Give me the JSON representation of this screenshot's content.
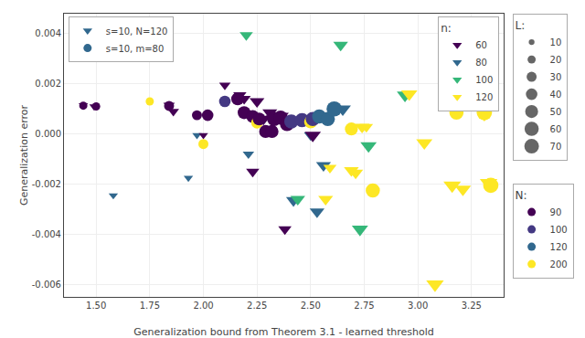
{
  "chart_data": {
    "type": "scatter",
    "xlabel": "Generalization bound from Theorem 3.1 - learned threshold",
    "ylabel": "Generalization error",
    "xlim": [
      1.35,
      3.4
    ],
    "ylim": [
      -0.0065,
      0.0048
    ],
    "xticks": [
      {
        "value": 1.5,
        "label": "1.50"
      },
      1.75,
      {
        "value": 2.0,
        "label": "2.00"
      },
      2.25,
      {
        "value": 2.5,
        "label": "2.50"
      },
      2.75,
      {
        "value": 3.0,
        "label": "3.00"
      },
      3.25
    ],
    "yticks": [
      -0.006,
      -0.004,
      -0.002,
      {
        "value": 0,
        "label": "0.000"
      },
      0.002,
      0.004
    ],
    "grid": true,
    "series": [
      {
        "name": "s=10, N=120",
        "marker": "triangle-down",
        "color": "#31688e",
        "x": [
          1.44,
          1.49,
          1.58,
          1.84,
          1.86,
          1.93,
          1.97,
          2.0,
          2.1,
          2.17,
          2.19,
          2.2,
          2.21,
          2.23,
          2.25,
          2.28,
          2.31,
          2.33,
          2.36,
          2.38,
          2.42,
          2.44,
          2.5,
          2.51,
          2.53,
          2.56,
          2.57,
          2.59,
          2.64,
          2.65,
          2.69,
          2.71,
          2.73,
          2.74,
          2.76,
          2.77,
          2.94,
          2.96,
          3.03,
          3.08,
          3.16,
          3.21,
          3.31,
          3.33
        ],
        "y": [
          0.00115,
          0.0011,
          -0.00245,
          0.00115,
          0.0009,
          -0.00175,
          -5e-05,
          -5e-05,
          0.00195,
          0.00155,
          0.0014,
          0.00395,
          -0.0008,
          -0.0015,
          0.0013,
          0.0006,
          0.00085,
          0.0006,
          0.0007,
          -0.0038,
          -0.00265,
          -0.0026,
          -5e-05,
          -5e-05,
          -0.0031,
          -0.00125,
          -0.0026,
          -0.00135,
          0.00355,
          0.001,
          -0.00145,
          -0.00155,
          -0.0038,
          0.00028,
          0.00028,
          -0.00047,
          0.00155,
          0.0016,
          -0.00035,
          -0.006,
          -0.00205,
          -0.0022,
          0.0008,
          -0.00195
        ],
        "groups": [
          60,
          60,
          80,
          60,
          60,
          80,
          80,
          60,
          60,
          60,
          60,
          100,
          80,
          60,
          60,
          60,
          60,
          60,
          60,
          60,
          80,
          100,
          80,
          60,
          80,
          80,
          120,
          120,
          100,
          80,
          120,
          120,
          100,
          120,
          120,
          100,
          100,
          120,
          120,
          120,
          120,
          120,
          120,
          120
        ],
        "L": [
          20,
          20,
          20,
          30,
          30,
          20,
          20,
          20,
          30,
          40,
          40,
          40,
          30,
          40,
          50,
          50,
          50,
          60,
          60,
          40,
          50,
          50,
          40,
          60,
          50,
          50,
          50,
          40,
          50,
          60,
          50,
          50,
          60,
          50,
          40,
          60,
          60,
          60,
          60,
          70,
          70,
          60,
          70,
          70
        ],
        "group_legend": {
          "title": "n:",
          "items": [
            {
              "name": "60",
              "color": "#440154"
            },
            {
              "name": "80",
              "color": "#31688e"
            },
            {
              "name": "100",
              "color": "#35b779"
            },
            {
              "name": "120",
              "color": "#fde725"
            }
          ]
        }
      },
      {
        "name": "s=10, m=80",
        "marker": "circle",
        "color": "#31688e",
        "x": [
          1.44,
          1.5,
          1.75,
          1.84,
          1.97,
          2.0,
          2.02,
          2.1,
          2.16,
          2.19,
          2.23,
          2.25,
          2.26,
          2.29,
          2.32,
          2.33,
          2.36,
          2.39,
          2.41,
          2.46,
          2.5,
          2.51,
          2.54,
          2.58,
          2.61,
          2.69,
          2.79,
          3.18,
          3.31,
          3.34
        ],
        "y": [
          0.00113,
          0.0011,
          0.0013,
          0.00112,
          0.00075,
          -0.0004,
          0.00075,
          0.0013,
          0.0014,
          0.00085,
          0.0007,
          0.00045,
          0.0006,
          0.0001,
          0.0001,
          0.0006,
          0.00065,
          0.0004,
          0.0005,
          0.00055,
          0.00048,
          0.0006,
          0.0007,
          0.0006,
          0.001,
          0.0002,
          -0.00225,
          0.00085,
          0.00085,
          -0.00205
        ],
        "groups": [
          90,
          90,
          200,
          90,
          90,
          200,
          90,
          100,
          90,
          90,
          90,
          200,
          90,
          90,
          90,
          90,
          90,
          90,
          100,
          100,
          200,
          100,
          120,
          120,
          120,
          200,
          200,
          200,
          200,
          200
        ],
        "L": [
          20,
          20,
          20,
          30,
          30,
          30,
          40,
          40,
          50,
          50,
          50,
          40,
          50,
          50,
          50,
          60,
          60,
          60,
          60,
          60,
          50,
          60,
          60,
          60,
          70,
          50,
          60,
          60,
          70,
          70
        ],
        "group_legend": {
          "title": "N:",
          "items": [
            {
              "name": "90",
              "color": "#440154"
            },
            {
              "name": "100",
              "color": "#443983"
            },
            {
              "name": "120",
              "color": "#31688e"
            },
            {
              "name": "200",
              "color": "#fde725"
            }
          ]
        }
      }
    ],
    "size_legend": {
      "title": "L:",
      "marker": "circle",
      "color": "#666666",
      "values": [
        10,
        20,
        30,
        40,
        50,
        60,
        70
      ]
    }
  }
}
